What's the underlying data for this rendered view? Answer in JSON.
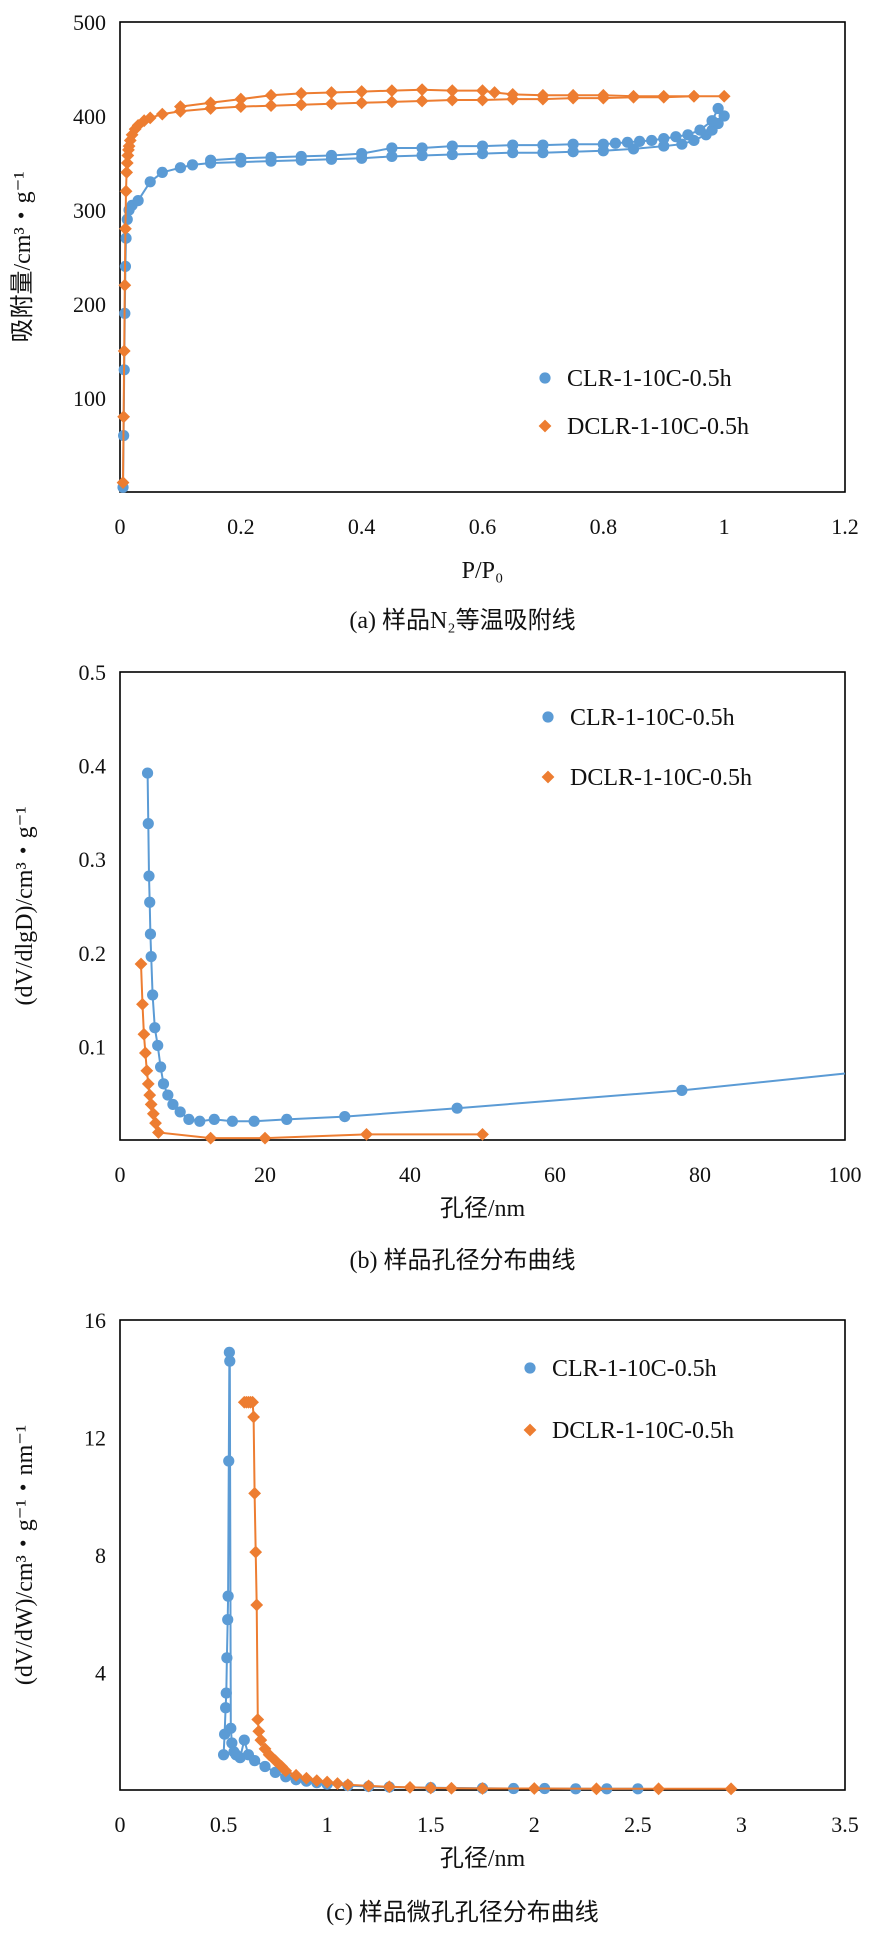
{
  "colors": {
    "clr": "#5B9BD5",
    "dclr": "#ED7D31"
  },
  "chart_data": [
    {
      "id": "a",
      "type": "line",
      "marker_clr": "circle",
      "marker_dclr": "diamond",
      "caption": "(a) 样品N₂等温吸附线",
      "xlabel": "P/P₀",
      "ylabel": "吸附量/cm³・g⁻¹",
      "xlim": [
        0,
        1.2
      ],
      "ylim": [
        0,
        500
      ],
      "xticks": [
        0,
        0.2,
        0.4,
        0.6,
        0.8,
        1,
        1.2
      ],
      "xtick_labels": [
        "0",
        "0.2",
        "0.4",
        "0.6",
        "0.8",
        "1",
        "1.2"
      ],
      "yticks": [
        100,
        200,
        300,
        400,
        500
      ],
      "ytick_labels": [
        "100",
        "200",
        "300",
        "400",
        "500"
      ],
      "legend_position": "right-middle",
      "series": [
        {
          "name": "CLR-1-10C-0.5h",
          "x": [
            0.005,
            0.006,
            0.007,
            0.008,
            0.009,
            0.01,
            0.012,
            0.015,
            0.02,
            0.03,
            0.05,
            0.07,
            0.1,
            0.12,
            0.15,
            0.2,
            0.25,
            0.3,
            0.35,
            0.4,
            0.45,
            0.5,
            0.55,
            0.6,
            0.65,
            0.7,
            0.75,
            0.8,
            0.85,
            0.9,
            0.93,
            0.95,
            0.97,
            0.98,
            0.99,
            1.0,
            0.99,
            0.98,
            0.96,
            0.94,
            0.92,
            0.9,
            0.88,
            0.86,
            0.84,
            0.82,
            0.8,
            0.75,
            0.7,
            0.65,
            0.6,
            0.55,
            0.5,
            0.45,
            0.4,
            0.35,
            0.3,
            0.25,
            0.2,
            0.15
          ],
          "y": [
            5,
            60,
            130,
            190,
            240,
            270,
            290,
            300,
            305,
            310,
            330,
            340,
            345,
            348,
            350,
            351,
            352,
            353,
            354,
            355,
            357,
            358,
            359,
            360,
            361,
            361,
            362,
            363,
            365,
            368,
            370,
            374,
            380,
            385,
            392,
            400,
            408,
            395,
            385,
            380,
            378,
            376,
            374,
            373,
            372,
            371,
            370,
            370,
            369,
            369,
            368,
            368,
            366,
            366,
            360,
            358,
            357,
            356,
            355,
            353
          ]
        },
        {
          "name": "DCLR-1-10C-0.5h",
          "x": [
            0.005,
            0.006,
            0.007,
            0.008,
            0.009,
            0.01,
            0.011,
            0.012,
            0.013,
            0.014,
            0.015,
            0.017,
            0.02,
            0.025,
            0.03,
            0.04,
            0.05,
            0.07,
            0.1,
            0.15,
            0.2,
            0.25,
            0.3,
            0.35,
            0.4,
            0.45,
            0.5,
            0.55,
            0.6,
            0.65,
            0.7,
            0.75,
            0.8,
            0.85,
            0.9,
            0.95,
            1.0,
            0.95,
            0.9,
            0.85,
            0.8,
            0.75,
            0.7,
            0.65,
            0.62,
            0.6,
            0.55,
            0.5,
            0.45,
            0.4,
            0.35,
            0.3,
            0.25,
            0.2,
            0.15,
            0.1
          ],
          "y": [
            10,
            80,
            150,
            220,
            280,
            320,
            340,
            350,
            358,
            364,
            368,
            374,
            380,
            386,
            390,
            395,
            398,
            402,
            405,
            408,
            410,
            411,
            412,
            413,
            414,
            415,
            416,
            417,
            417,
            418,
            418,
            419,
            419,
            420,
            420,
            421,
            421,
            421,
            421,
            421,
            422,
            422,
            422,
            423,
            425,
            427,
            427,
            428,
            427,
            426,
            425,
            424,
            422,
            418,
            414,
            410
          ]
        }
      ]
    },
    {
      "id": "b",
      "type": "line",
      "marker_clr": "circle",
      "marker_dclr": "diamond",
      "caption": "(b) 样品孔径分布曲线",
      "xlabel": "孔径/nm",
      "ylabel": "(dV/dlgD)/cm³・g⁻¹",
      "xlim": [
        0,
        100
      ],
      "ylim": [
        0,
        0.5
      ],
      "xticks": [
        0,
        20,
        40,
        60,
        80,
        100
      ],
      "xtick_labels": [
        "0",
        "20",
        "40",
        "60",
        "80",
        "100"
      ],
      "yticks": [
        0.1,
        0.2,
        0.3,
        0.4,
        0.5
      ],
      "ytick_labels": [
        "0.1",
        "0.2",
        "0.3",
        "0.4",
        "0.5"
      ],
      "legend_position": "top-right",
      "series": [
        {
          "name": "CLR-1-10C-0.5h",
          "x": [
            3.8,
            3.9,
            4.0,
            4.1,
            4.2,
            4.3,
            4.5,
            4.8,
            5.2,
            5.6,
            6.0,
            6.6,
            7.3,
            8.3,
            9.5,
            11,
            13,
            15.5,
            18.5,
            23,
            31,
            46.5,
            77.5,
            100
          ],
          "y": [
            0.392,
            0.338,
            0.282,
            0.254,
            0.22,
            0.196,
            0.155,
            0.12,
            0.101,
            0.078,
            0.06,
            0.048,
            0.038,
            0.03,
            0.022,
            0.02,
            0.022,
            0.02,
            0.02,
            0.022,
            0.025,
            0.034,
            0.053,
            0.071
          ]
        },
        {
          "name": "DCLR-1-10C-0.5h",
          "x": [
            2.9,
            3.1,
            3.3,
            3.5,
            3.7,
            3.9,
            4.1,
            4.3,
            4.6,
            4.9,
            5.3,
            12.5,
            20,
            34,
            50
          ],
          "y": [
            0.188,
            0.145,
            0.113,
            0.093,
            0.074,
            0.06,
            0.048,
            0.038,
            0.028,
            0.018,
            0.008,
            0.002,
            0.002,
            0.006,
            0.006
          ]
        }
      ]
    },
    {
      "id": "c",
      "type": "line",
      "marker_clr": "circle",
      "marker_dclr": "diamond",
      "caption": "(c) 样品微孔孔径分布曲线",
      "xlabel": "孔径/nm",
      "ylabel": "(dV/dW)/cm³・g⁻¹・nm⁻¹",
      "xlim": [
        0,
        3.5
      ],
      "ylim": [
        0,
        16
      ],
      "xticks": [
        0,
        0.5,
        1,
        1.5,
        2,
        2.5,
        3,
        3.5
      ],
      "xtick_labels": [
        "0",
        "0.5",
        "1",
        "1.5",
        "2",
        "2.5",
        "3",
        "3.5"
      ],
      "yticks": [
        4,
        8,
        12,
        16
      ],
      "ytick_labels": [
        "4",
        "8",
        "12",
        "16"
      ],
      "legend_position": "top-right",
      "series": [
        {
          "name": "CLR-1-10C-0.5h",
          "x": [
            0.5,
            0.505,
            0.51,
            0.513,
            0.516,
            0.52,
            0.522,
            0.525,
            0.528,
            0.53,
            0.535,
            0.54,
            0.55,
            0.56,
            0.58,
            0.6,
            0.62,
            0.65,
            0.7,
            0.75,
            0.8,
            0.85,
            0.9,
            0.95,
            1.0,
            1.1,
            1.2,
            1.3,
            1.5,
            1.75,
            1.9,
            2.05,
            2.2,
            2.35,
            2.5
          ],
          "y": [
            1.2,
            1.9,
            2.8,
            3.3,
            4.5,
            5.8,
            6.6,
            11.2,
            14.9,
            14.6,
            2.1,
            1.6,
            1.3,
            1.2,
            1.1,
            1.7,
            1.2,
            1.0,
            0.8,
            0.6,
            0.45,
            0.35,
            0.3,
            0.25,
            0.2,
            0.15,
            0.12,
            0.1,
            0.08,
            0.06,
            0.05,
            0.05,
            0.04,
            0.04,
            0.04
          ]
        },
        {
          "name": "DCLR-1-10C-0.5h",
          "x": [
            0.6,
            0.61,
            0.62,
            0.63,
            0.64,
            0.645,
            0.65,
            0.655,
            0.66,
            0.665,
            0.67,
            0.68,
            0.7,
            0.72,
            0.75,
            0.78,
            0.8,
            0.85,
            0.9,
            0.95,
            1.0,
            1.05,
            1.1,
            1.2,
            1.3,
            1.4,
            1.5,
            1.6,
            1.75,
            2.0,
            2.3,
            2.6,
            2.95
          ],
          "y": [
            13.2,
            13.2,
            13.2,
            13.2,
            13.2,
            12.7,
            10.1,
            8.1,
            6.3,
            2.4,
            2.0,
            1.7,
            1.4,
            1.2,
            1.0,
            0.8,
            0.65,
            0.5,
            0.4,
            0.32,
            0.27,
            0.22,
            0.18,
            0.14,
            0.11,
            0.09,
            0.07,
            0.06,
            0.05,
            0.05,
            0.04,
            0.04,
            0.04
          ]
        }
      ]
    }
  ]
}
